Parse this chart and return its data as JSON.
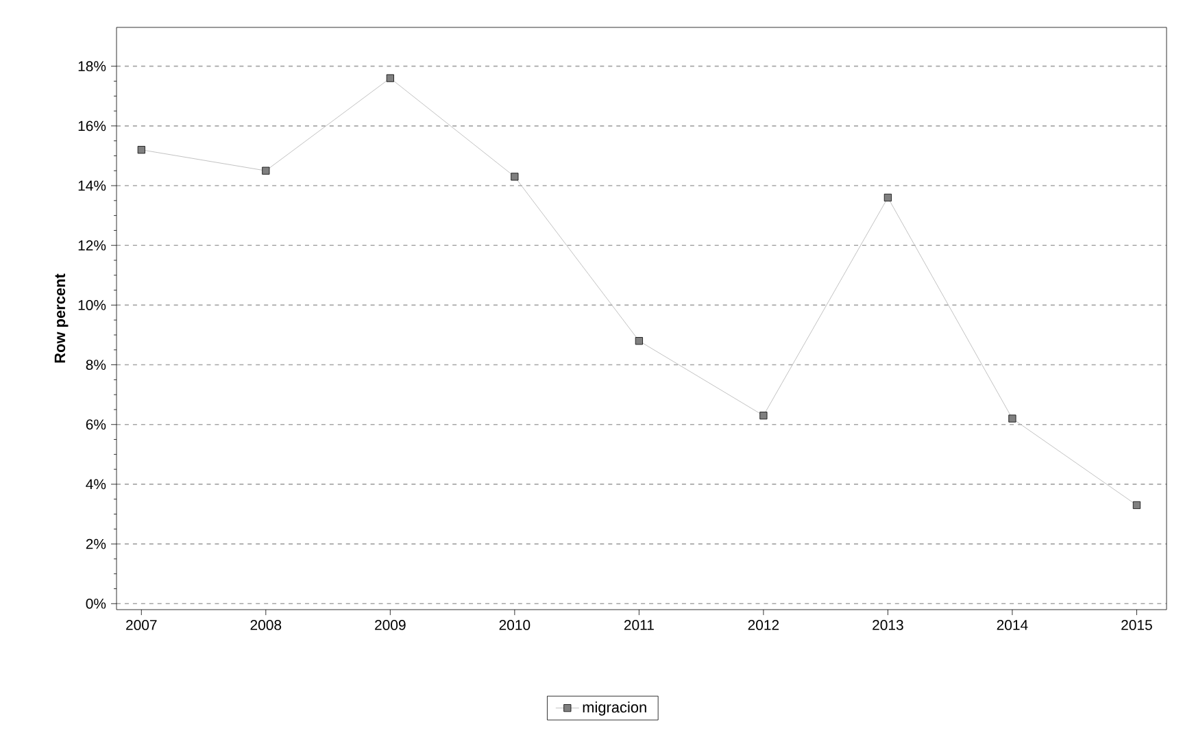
{
  "chart_data": {
    "type": "line",
    "ylabel": "Row percent",
    "categories": [
      "2007",
      "2008",
      "2009",
      "2010",
      "2011",
      "2012",
      "2013",
      "2014",
      "2015"
    ],
    "series": [
      {
        "name": "migracion",
        "color": "#808080",
        "values": [
          15.2,
          14.5,
          17.6,
          14.3,
          8.8,
          6.3,
          13.6,
          6.2,
          3.3
        ]
      }
    ],
    "ylim": [
      -0.2,
      19.3
    ],
    "yticks": [
      {
        "value": 0,
        "label": "0%"
      },
      {
        "value": 2,
        "label": "2%"
      },
      {
        "value": 4,
        "label": "4%"
      },
      {
        "value": 6,
        "label": "6%"
      },
      {
        "value": 8,
        "label": "8%"
      },
      {
        "value": 10,
        "label": "10%"
      },
      {
        "value": 12,
        "label": "12%"
      },
      {
        "value": 14,
        "label": "14%"
      },
      {
        "value": 16,
        "label": "16%"
      },
      {
        "value": 18,
        "label": "18%"
      }
    ],
    "grid": "y",
    "legend": "bottom",
    "marker": "square",
    "line_style": "solid"
  }
}
